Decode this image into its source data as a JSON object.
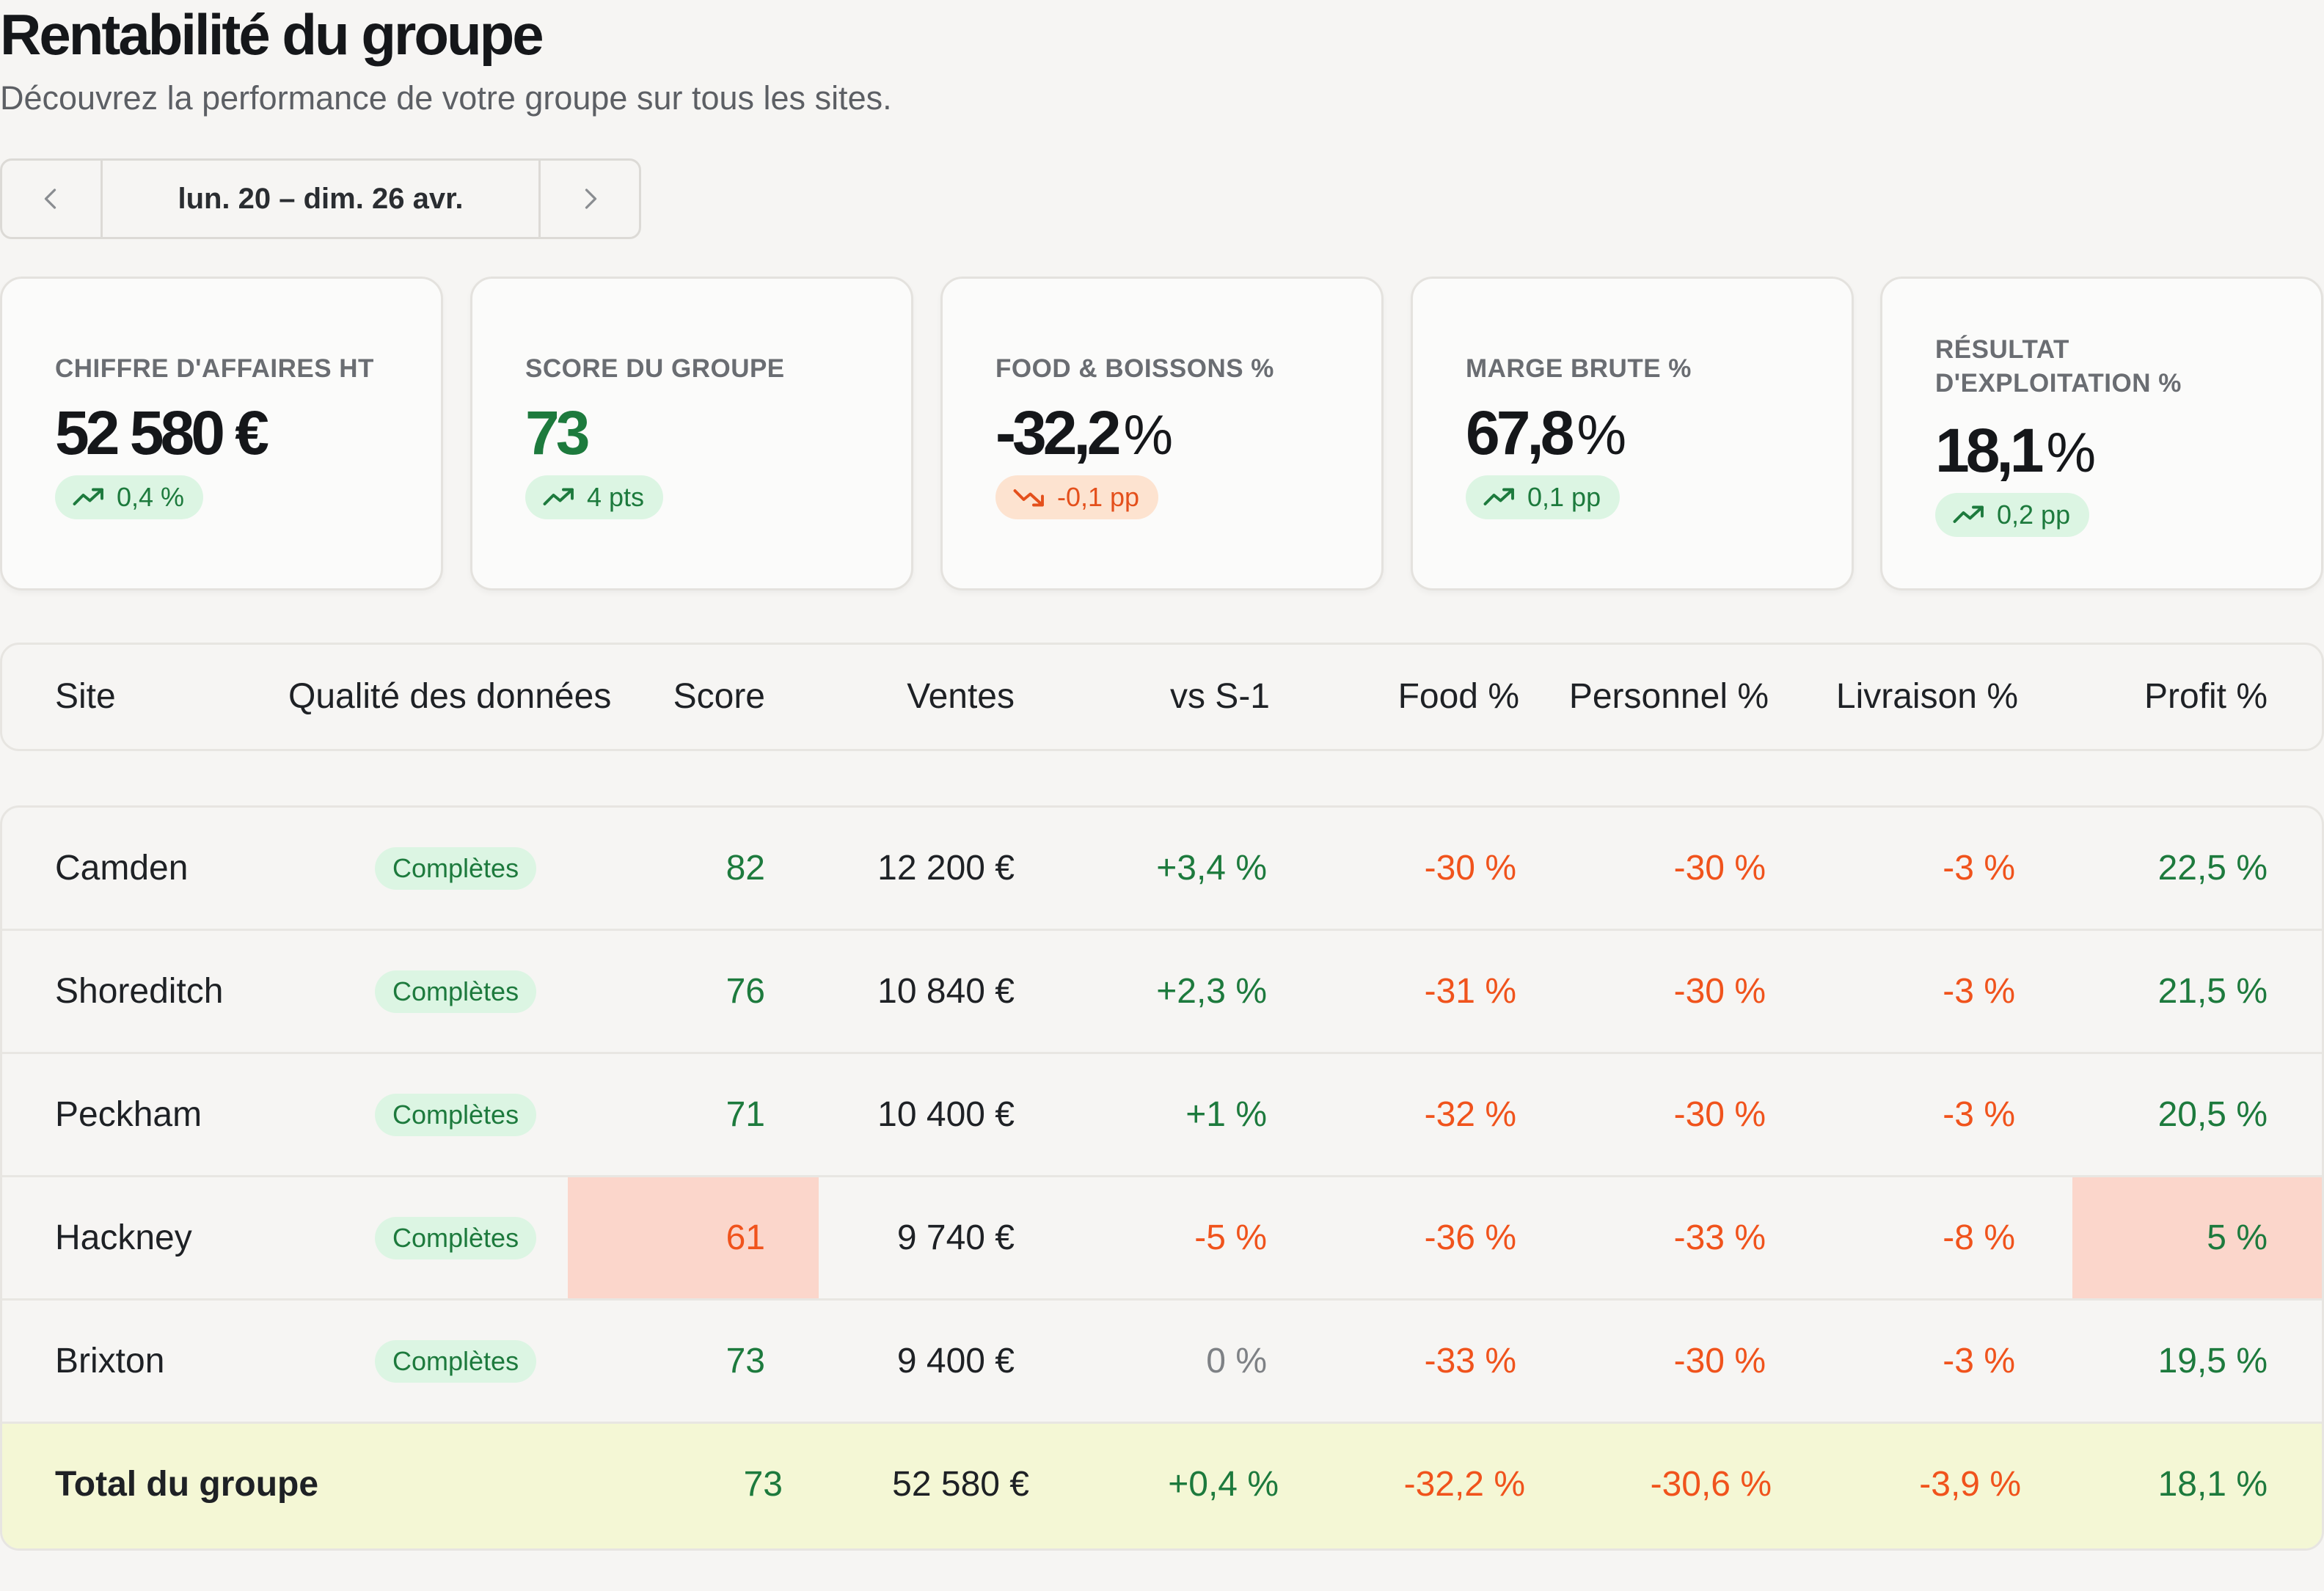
{
  "header": {
    "title": "Rentabilité du groupe",
    "subtitle": "Découvrez la performance de votre groupe sur tous les sites."
  },
  "date_nav": {
    "label": "lun. 20 – dim. 26 avr.",
    "prev_icon": "chevron-left-icon",
    "next_icon": "chevron-right-icon"
  },
  "kpis": [
    {
      "label": "CHIFFRE D'AFFAIRES HT",
      "value": "52 580 €",
      "unit": "",
      "delta": "0,4 %",
      "trend": "up"
    },
    {
      "label": "SCORE DU GROUPE",
      "value": "73",
      "unit": "",
      "delta": "4 pts",
      "trend": "up"
    },
    {
      "label": "FOOD & BOISSONS %",
      "value": "-32,2",
      "unit": "%",
      "delta": "-0,1 pp",
      "trend": "down"
    },
    {
      "label": "MARGE BRUTE %",
      "value": "67,8",
      "unit": "%",
      "delta": "0,1 pp",
      "trend": "up"
    },
    {
      "label": "RÉSULTAT D'EXPLOITATION %",
      "value": "18,1",
      "unit": "%",
      "delta": "0,2 pp",
      "trend": "up"
    }
  ],
  "colors": {
    "positive": "#1d7a3d",
    "negative": "#f0531c",
    "highlight": "#fbd6cb",
    "total_row": "#f4f7d5"
  },
  "table": {
    "headers": {
      "site": "Site",
      "quality": "Qualité des données",
      "score": "Score",
      "sales": "Ventes",
      "vs": "vs S-1",
      "food": "Food %",
      "staff": "Personnel %",
      "delivery": "Livraison %",
      "profit": "Profit %"
    },
    "rows": [
      {
        "site": "Camden",
        "quality": "Complètes",
        "score": "82",
        "sales": "12 200 €",
        "vs": "+3,4 %",
        "food": "-30 %",
        "staff": "-30 %",
        "delivery": "-3 %",
        "profit": "22,5 %"
      },
      {
        "site": "Shoreditch",
        "quality": "Complètes",
        "score": "76",
        "sales": "10 840 €",
        "vs": "+2,3 %",
        "food": "-31 %",
        "staff": "-30 %",
        "delivery": "-3 %",
        "profit": "21,5 %"
      },
      {
        "site": "Peckham",
        "quality": "Complètes",
        "score": "71",
        "sales": "10 400 €",
        "vs": "+1 %",
        "food": "-32 %",
        "staff": "-30 %",
        "delivery": "-3 %",
        "profit": "20,5 %"
      },
      {
        "site": "Hackney",
        "quality": "Complètes",
        "score": "61",
        "sales": "9 740 €",
        "vs": "-5 %",
        "food": "-36 %",
        "staff": "-33 %",
        "delivery": "-8 %",
        "profit": "5 %"
      },
      {
        "site": "Brixton",
        "quality": "Complètes",
        "score": "73",
        "sales": "9 400 €",
        "vs": "0 %",
        "food": "-33 %",
        "staff": "-30 %",
        "delivery": "-3 %",
        "profit": "19,5 %"
      }
    ],
    "total": {
      "label": "Total du groupe",
      "score": "73",
      "sales": "52 580 €",
      "vs": "+0,4 %",
      "food": "-32,2 %",
      "staff": "-30,6 %",
      "delivery": "-3,9 %",
      "profit": "18,1 %"
    }
  }
}
